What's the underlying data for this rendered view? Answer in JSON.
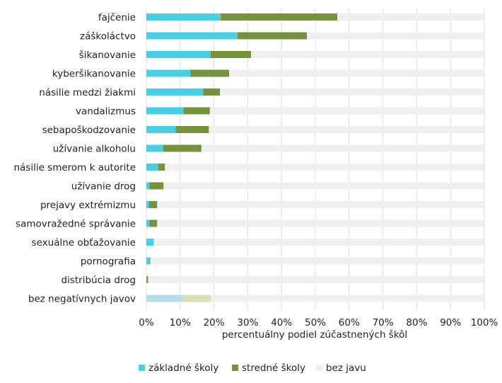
{
  "chart_data": {
    "type": "bar",
    "orientation": "horizontal",
    "stacked": true,
    "title": "",
    "xlabel": "percentuálny podiel zúčastnených škôl",
    "ylabel": "",
    "xlim": [
      0,
      100
    ],
    "x_ticks": [
      "0%",
      "10%",
      "20%",
      "30%",
      "40%",
      "50%",
      "60%",
      "70%",
      "80%",
      "90%",
      "100%"
    ],
    "grid": true,
    "legend_position": "bottom",
    "categories": [
      "fajčenie",
      "záškoláctvo",
      "šikanovanie",
      "kyberšikanovanie",
      "násilie medzi žiakmi",
      "vandalizmus",
      "sebapoškodzovanie",
      "užívanie alkoholu",
      "násilie smerom k autorite",
      "užívanie drog",
      "prejavy extrémizmu",
      "samovražedné správanie",
      "sexuálne obťažovanie",
      "pornografia",
      "distribúcia drog",
      "bez negatívnych javov"
    ],
    "series": [
      {
        "name": "základné školy",
        "color": "#45d0e6",
        "values": [
          22,
          27,
          19,
          13,
          16.8,
          11,
          8.7,
          5,
          3.5,
          0.9,
          0.8,
          0.9,
          2.2,
          1,
          0.1,
          10.6
        ]
      },
      {
        "name": "stredné školy",
        "color": "#76923c",
        "values": [
          34.5,
          20.5,
          12,
          11.5,
          5,
          7.8,
          9.8,
          11.3,
          2,
          4.2,
          2.4,
          2.3,
          0,
          0.2,
          0.4,
          8.5
        ]
      },
      {
        "name": "bez javu",
        "color": "#efefef",
        "values": [
          43.5,
          52.5,
          69,
          75.5,
          78.2,
          81.2,
          81.5,
          83.7,
          94.5,
          94.9,
          96.8,
          96.8,
          97.8,
          98.8,
          99.5,
          80.9
        ]
      }
    ],
    "faded_category": "bez negatívnych javov",
    "faded_colors": [
      "#b7dde6",
      "#d3e2b9",
      "#efefef"
    ]
  }
}
